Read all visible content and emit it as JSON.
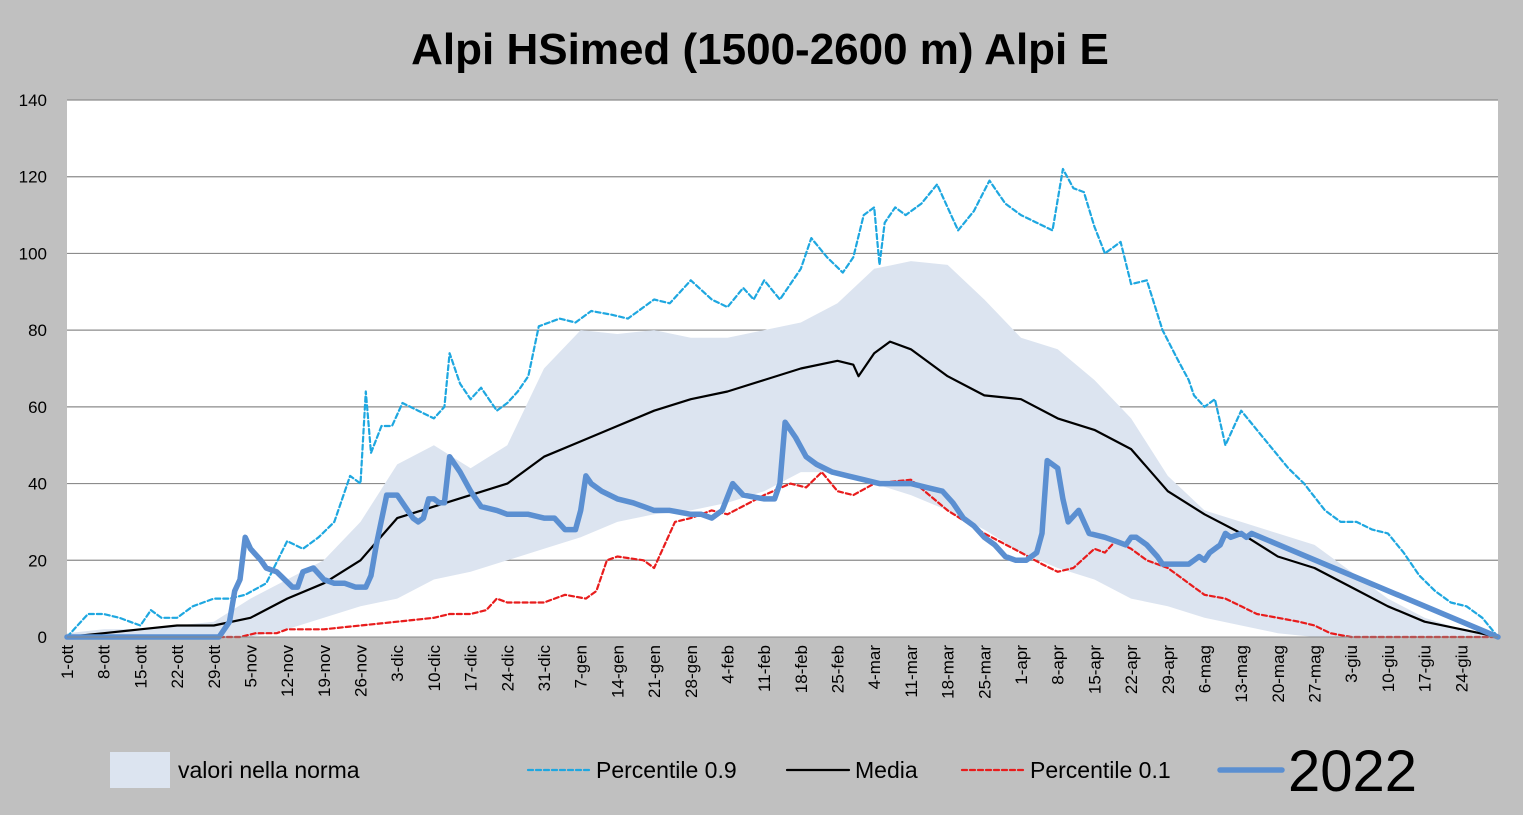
{
  "chart_data": {
    "type": "line",
    "title": "Alpi HSimed (1500-2600 m) Alpi E",
    "xlabel": "",
    "ylabel": "",
    "ylim": [
      0,
      140
    ],
    "yticks": [
      0,
      20,
      40,
      60,
      80,
      100,
      120,
      140
    ],
    "grid": true,
    "x_days": [
      0,
      273
    ],
    "x_tick_labels": [
      "1-ott",
      "8-ott",
      "15-ott",
      "22-ott",
      "29-ott",
      "5-nov",
      "12-nov",
      "19-nov",
      "26-nov",
      "3-dic",
      "10-dic",
      "17-dic",
      "24-dic",
      "31-dic",
      "7-gen",
      "14-gen",
      "21-gen",
      "28-gen",
      "4-feb",
      "11-feb",
      "18-feb",
      "25-feb",
      "4-mar",
      "11-mar",
      "18-mar",
      "25-mar",
      "1-apr",
      "8-apr",
      "15-apr",
      "22-apr",
      "29-apr",
      "6-mag",
      "13-mag",
      "20-mag",
      "27-mag",
      "3-giu",
      "10-giu",
      "17-giu",
      "24-giu"
    ],
    "legend_position": "bottom",
    "band": {
      "name": "valori nella norma",
      "color": "#dce4f0",
      "x": [
        0,
        7,
        14,
        21,
        28,
        35,
        42,
        49,
        56,
        63,
        70,
        77,
        84,
        91,
        98,
        105,
        112,
        119,
        126,
        133,
        140,
        147,
        154,
        161,
        168,
        175,
        182,
        189,
        196,
        203,
        210,
        217,
        224,
        231,
        238,
        245,
        252,
        259,
        266,
        273
      ],
      "upper": [
        1,
        2,
        2,
        3,
        4,
        10,
        15,
        20,
        30,
        45,
        50,
        44,
        50,
        70,
        80,
        79,
        80,
        78,
        78,
        80,
        82,
        87,
        96,
        98,
        97,
        88,
        78,
        75,
        67,
        57,
        42,
        33,
        30,
        27,
        24,
        17,
        10,
        5,
        2,
        0
      ],
      "lower": [
        0,
        0,
        0,
        0,
        0,
        0,
        2,
        5,
        8,
        10,
        15,
        17,
        20,
        23,
        26,
        30,
        32,
        33,
        35,
        38,
        43,
        43,
        40,
        37,
        33,
        28,
        22,
        18,
        15,
        10,
        8,
        5,
        3,
        1,
        0,
        0,
        0,
        0,
        0,
        0
      ]
    },
    "series": [
      {
        "name": "Percentile 0.9",
        "color": "#1ea7e0",
        "style": "dashed",
        "x": [
          0,
          2,
          4,
          7,
          10,
          12,
          14,
          16,
          18,
          21,
          24,
          28,
          31,
          34,
          38,
          42,
          45,
          48,
          51,
          54,
          56,
          57,
          58,
          60,
          62,
          64,
          67,
          70,
          72,
          73,
          75,
          77,
          79,
          82,
          84,
          86,
          88,
          90,
          94,
          97,
          100,
          104,
          107,
          112,
          115,
          119,
          123,
          126,
          129,
          131,
          133,
          136,
          140,
          142,
          145,
          148,
          150,
          152,
          154,
          155,
          156,
          158,
          160,
          163,
          166,
          168,
          170,
          173,
          176,
          179,
          182,
          185,
          188,
          190,
          192,
          194,
          196,
          198,
          201,
          203,
          206,
          209,
          212,
          214,
          215,
          217,
          219,
          221,
          224,
          227,
          230,
          233,
          236,
          240,
          243,
          246,
          249,
          252,
          255,
          258,
          261,
          264,
          267,
          270,
          273
        ],
        "y": [
          0,
          3,
          6,
          6,
          5,
          4,
          3,
          7,
          5,
          5,
          8,
          10,
          10,
          11,
          14,
          25,
          23,
          26,
          30,
          42,
          40,
          64,
          48,
          55,
          55,
          61,
          59,
          57,
          60,
          74,
          66,
          62,
          65,
          59,
          61,
          64,
          68,
          81,
          83,
          82,
          85,
          84,
          83,
          88,
          87,
          93,
          88,
          86,
          91,
          88,
          93,
          88,
          96,
          104,
          99,
          95,
          99,
          110,
          112,
          97,
          108,
          112,
          110,
          113,
          118,
          112,
          106,
          111,
          119,
          113,
          110,
          108,
          106,
          122,
          117,
          116,
          107,
          100,
          103,
          92,
          93,
          80,
          72,
          67,
          63,
          60,
          62,
          50,
          59,
          54,
          49,
          44,
          40,
          33,
          30,
          30,
          28,
          27,
          22,
          16,
          12,
          9,
          8,
          5,
          0
        ]
      },
      {
        "name": "Media",
        "color": "#000000",
        "style": "solid",
        "x": [
          0,
          7,
          14,
          21,
          28,
          35,
          42,
          49,
          56,
          63,
          70,
          77,
          84,
          91,
          98,
          105,
          112,
          119,
          126,
          133,
          140,
          147,
          150,
          151,
          154,
          157,
          161,
          168,
          175,
          182,
          189,
          196,
          203,
          210,
          217,
          224,
          231,
          238,
          245,
          252,
          259,
          266,
          273
        ],
        "y": [
          0,
          1,
          2,
          3,
          3,
          5,
          10,
          14,
          20,
          31,
          34,
          37,
          40,
          47,
          51,
          55,
          59,
          62,
          64,
          67,
          70,
          72,
          71,
          68,
          74,
          77,
          75,
          68,
          63,
          62,
          57,
          54,
          49,
          38,
          32,
          27,
          21,
          18,
          13,
          8,
          4,
          2,
          0
        ]
      },
      {
        "name": "Percentile 0.1",
        "color": "#e81c1c",
        "style": "dashed",
        "x": [
          0,
          30,
          33,
          36,
          40,
          42,
          49,
          56,
          63,
          70,
          73,
          77,
          80,
          82,
          84,
          91,
          95,
          99,
          101,
          103,
          105,
          110,
          112,
          116,
          119,
          123,
          126,
          133,
          138,
          141,
          144,
          147,
          150,
          154,
          161,
          168,
          175,
          182,
          186,
          189,
          192,
          196,
          198,
          200,
          203,
          206,
          210,
          212,
          214,
          217,
          221,
          224,
          227,
          231,
          235,
          238,
          241,
          245,
          249,
          252,
          259,
          266,
          273
        ],
        "y": [
          0,
          0,
          0,
          1,
          1,
          2,
          2,
          3,
          4,
          5,
          6,
          6,
          7,
          10,
          9,
          9,
          11,
          10,
          12,
          20,
          21,
          20,
          18,
          30,
          31,
          33,
          32,
          37,
          40,
          39,
          43,
          38,
          37,
          40,
          41,
          33,
          27,
          22,
          19,
          17,
          18,
          23,
          22,
          25,
          23,
          20,
          18,
          16,
          14,
          11,
          10,
          8,
          6,
          5,
          4,
          3,
          1,
          0,
          0,
          0,
          0,
          0,
          0
        ]
      },
      {
        "name": "2022",
        "color": "#5b8fd1",
        "style": "solid-thick",
        "x": [
          0,
          29,
          31,
          32,
          33,
          34,
          35,
          37,
          38,
          40,
          43,
          44,
          45,
          47,
          49,
          51,
          53,
          55,
          56,
          57,
          58,
          59,
          61,
          63,
          65,
          66,
          67,
          68,
          69,
          70,
          71,
          72,
          73,
          75,
          77,
          79,
          82,
          84,
          86,
          88,
          91,
          93,
          95,
          97,
          98,
          99,
          100,
          102,
          105,
          108,
          110,
          112,
          115,
          119,
          121,
          123,
          124,
          125,
          127,
          129,
          133,
          135,
          136,
          137,
          139,
          141,
          143,
          146,
          149,
          152,
          155,
          158,
          161,
          164,
          167,
          169,
          171,
          173,
          175,
          177,
          179,
          181,
          183,
          185,
          186,
          187,
          189,
          190,
          191,
          193,
          195,
          198,
          200,
          202,
          203,
          204,
          206,
          208,
          209,
          210,
          211,
          212,
          213,
          214,
          215,
          216,
          217,
          218,
          220,
          221,
          222,
          224,
          225,
          226,
          273
        ],
        "y": [
          0,
          0,
          4,
          12,
          15,
          26,
          23,
          20,
          18,
          17,
          13,
          13,
          17,
          18,
          15,
          14,
          14,
          13,
          13,
          13,
          16,
          24,
          37,
          37,
          33,
          31,
          30,
          31,
          36,
          36,
          35,
          35,
          47,
          43,
          38,
          34,
          33,
          32,
          32,
          32,
          31,
          31,
          28,
          28,
          33,
          42,
          40,
          38,
          36,
          35,
          34,
          33,
          33,
          32,
          32,
          31,
          32,
          33,
          40,
          37,
          36,
          36,
          40,
          56,
          52,
          47,
          45,
          43,
          42,
          41,
          40,
          40,
          40,
          39,
          38,
          35,
          31,
          29,
          26,
          24,
          21,
          20,
          20,
          22,
          27,
          46,
          44,
          36,
          30,
          33,
          27,
          26,
          25,
          24,
          26,
          26,
          24,
          21,
          19,
          19,
          19,
          19,
          19,
          19,
          20,
          21,
          20,
          22,
          24,
          27,
          26,
          27,
          26,
          27,
          0
        ]
      }
    ]
  }
}
